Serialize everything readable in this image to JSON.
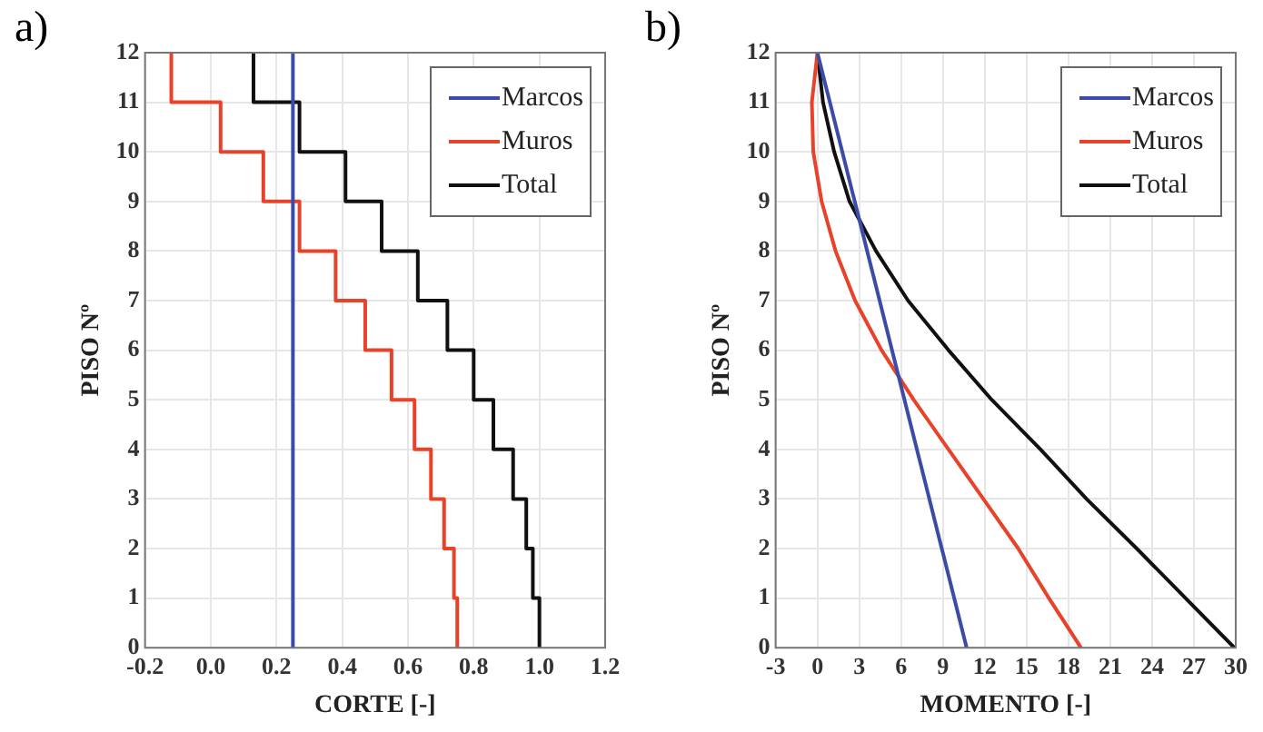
{
  "chart_data": [
    {
      "type": "line",
      "title": "a)",
      "xlabel": "CORTE [-]",
      "ylabel": "PISO Nº",
      "xlim": [
        -0.2,
        1.2
      ],
      "xticks": [
        -0.2,
        {
          "value": 0,
          "label": "0.0"
        },
        0.2,
        0.4,
        0.6,
        0.8,
        {
          "value": 1,
          "label": "1.0"
        },
        1.2
      ],
      "ylim": [
        0,
        12
      ],
      "yticks": [
        0,
        1,
        2,
        3,
        4,
        5,
        6,
        7,
        8,
        9,
        10,
        11,
        12
      ],
      "grid": true,
      "legend": "top right",
      "marker": "none",
      "series": [
        {
          "name": "Marcos",
          "color": "#3b4ba8",
          "x": [
            0.25,
            0.25
          ],
          "values": [
            12,
            0
          ]
        },
        {
          "name": "Muros",
          "color": "#e8432a",
          "x": [
            -0.12,
            -0.12,
            0.03,
            0.03,
            0.16,
            0.16,
            0.27,
            0.27,
            0.38,
            0.38,
            0.47,
            0.47,
            0.55,
            0.55,
            0.62,
            0.62,
            0.67,
            0.67,
            0.71,
            0.71,
            0.74,
            0.74,
            0.75,
            0.75
          ],
          "values": [
            12,
            11,
            11,
            10,
            10,
            9,
            9,
            8,
            8,
            7,
            7,
            6,
            6,
            5,
            5,
            4,
            4,
            3,
            3,
            2,
            2,
            1,
            1,
            0
          ]
        },
        {
          "name": "Total",
          "color": "#111111",
          "x": [
            0.13,
            0.13,
            0.27,
            0.27,
            0.41,
            0.41,
            0.52,
            0.52,
            0.63,
            0.63,
            0.72,
            0.72,
            0.8,
            0.8,
            0.86,
            0.86,
            0.92,
            0.92,
            0.96,
            0.96,
            0.98,
            0.98,
            1,
            1
          ],
          "values": [
            12,
            11,
            11,
            10,
            10,
            9,
            9,
            8,
            8,
            7,
            7,
            6,
            6,
            5,
            5,
            4,
            4,
            3,
            3,
            2,
            2,
            1,
            1,
            0
          ]
        }
      ]
    },
    {
      "type": "line",
      "title": "b)",
      "xlabel": "MOMENTO [-]",
      "ylabel": "PISO Nº",
      "xlim": [
        -3,
        30
      ],
      "xticks": [
        -3,
        0,
        3,
        6,
        9,
        12,
        15,
        18,
        21,
        24,
        27,
        30
      ],
      "ylim": [
        0,
        12
      ],
      "yticks": [
        0,
        1,
        2,
        3,
        4,
        5,
        6,
        7,
        8,
        9,
        10,
        11,
        12
      ],
      "grid": true,
      "legend": "top right",
      "marker": "none",
      "series": [
        {
          "name": "Marcos",
          "color": "#3b4ba8",
          "x": [
            0,
            10.7
          ],
          "values": [
            12,
            0
          ]
        },
        {
          "name": "Muros",
          "color": "#e8432a",
          "x": [
            0,
            -0.4,
            -0.3,
            0.3,
            1.3,
            2.7,
            4.6,
            6.9,
            9.4,
            11.9,
            14.4,
            16.6,
            18.9
          ],
          "values": [
            12,
            11,
            10,
            9,
            8,
            7,
            6,
            5,
            4,
            3,
            2,
            1,
            0
          ]
        },
        {
          "name": "Total",
          "color": "#111111",
          "x": [
            0,
            0.4,
            1.2,
            2.3,
            4.2,
            6.5,
            9.4,
            12.5,
            16,
            19.3,
            22.9,
            26.4,
            29.9
          ],
          "values": [
            12,
            11,
            10,
            9,
            8,
            7,
            6,
            5,
            4,
            3,
            2,
            1,
            0
          ]
        }
      ]
    }
  ]
}
